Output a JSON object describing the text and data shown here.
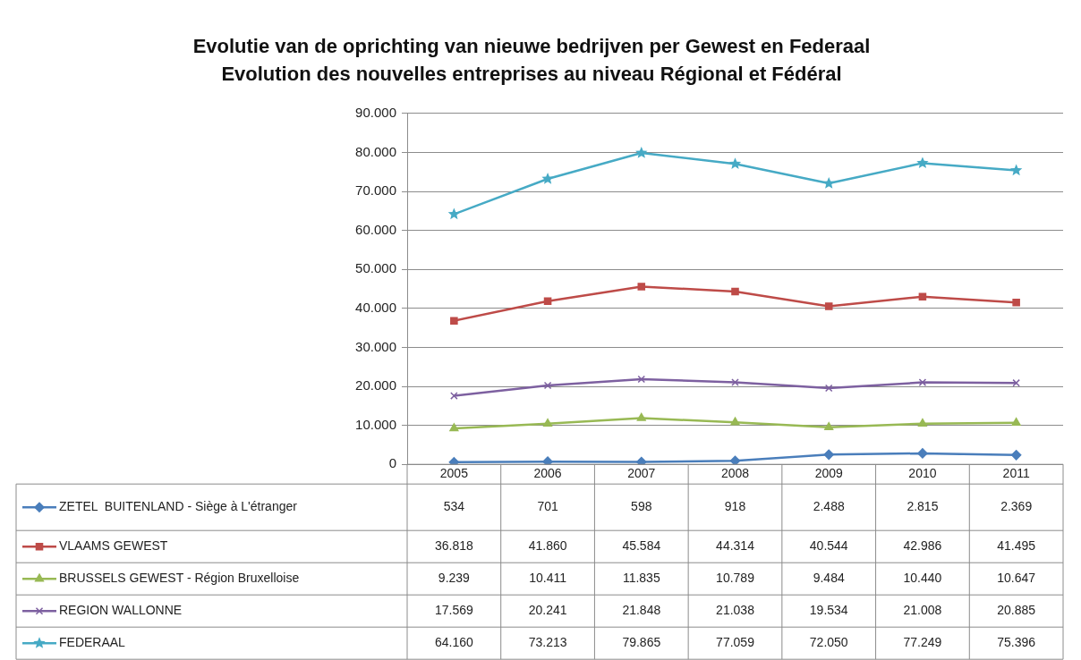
{
  "chart_data": {
    "type": "line",
    "title": "Evolutie van de oprichting van nieuwe bedrijven per Gewest en Federaal",
    "subtitle": "Evolution des nouvelles entreprises au niveau Régional et Fédéral",
    "categories": [
      "2005",
      "2006",
      "2007",
      "2008",
      "2009",
      "2010",
      "2011"
    ],
    "series": [
      {
        "name": "ZETEL  BUITENLAND - Siège à L'étranger",
        "color": "#4a7ebb",
        "marker": "diamond",
        "values": [
          534,
          701,
          598,
          918,
          2488,
          2815,
          2369
        ],
        "value_labels": [
          "534",
          "701",
          "598",
          "918",
          "2.488",
          "2.815",
          "2.369"
        ]
      },
      {
        "name": "VLAAMS GEWEST",
        "color": "#be4b48",
        "marker": "square",
        "values": [
          36818,
          41860,
          45584,
          44314,
          40544,
          42986,
          41495
        ],
        "value_labels": [
          "36.818",
          "41.860",
          "45.584",
          "44.314",
          "40.544",
          "42.986",
          "41.495"
        ]
      },
      {
        "name": "BRUSSELS GEWEST - Région Bruxelloise",
        "color": "#98b954",
        "marker": "triangle",
        "values": [
          9239,
          10411,
          11835,
          10789,
          9484,
          10440,
          10647
        ],
        "value_labels": [
          "9.239",
          "10.411",
          "11.835",
          "10.789",
          "9.484",
          "10.440",
          "10.647"
        ]
      },
      {
        "name": "REGION WALLONNE",
        "color": "#7d60a0",
        "marker": "cross",
        "values": [
          17569,
          20241,
          21848,
          21038,
          19534,
          21008,
          20885
        ],
        "value_labels": [
          "17.569",
          "20.241",
          "21.848",
          "21.038",
          "19.534",
          "21.008",
          "20.885"
        ]
      },
      {
        "name": "FEDERAAL",
        "color": "#46aac5",
        "marker": "star",
        "values": [
          64160,
          73213,
          79865,
          77059,
          72050,
          77249,
          75396
        ],
        "value_labels": [
          "64.160",
          "73.213",
          "79.865",
          "77.059",
          "72.050",
          "77.249",
          "75.396"
        ]
      }
    ],
    "ylim": [
      0,
      90000
    ],
    "yticks": [
      0,
      {
        "value": 10000,
        "label": "10.000"
      },
      {
        "value": 20000,
        "label": "20.000"
      },
      {
        "value": 30000,
        "label": "30.000"
      },
      {
        "value": 40000,
        "label": "40.000"
      },
      {
        "value": 50000,
        "label": "50.000"
      },
      {
        "value": 60000,
        "label": "60.000"
      },
      {
        "value": 70000,
        "label": "70.000"
      },
      {
        "value": 80000,
        "label": "80.000"
      },
      {
        "value": 90000,
        "label": "90.000"
      }
    ],
    "grid": "y",
    "legend": "bottom"
  }
}
